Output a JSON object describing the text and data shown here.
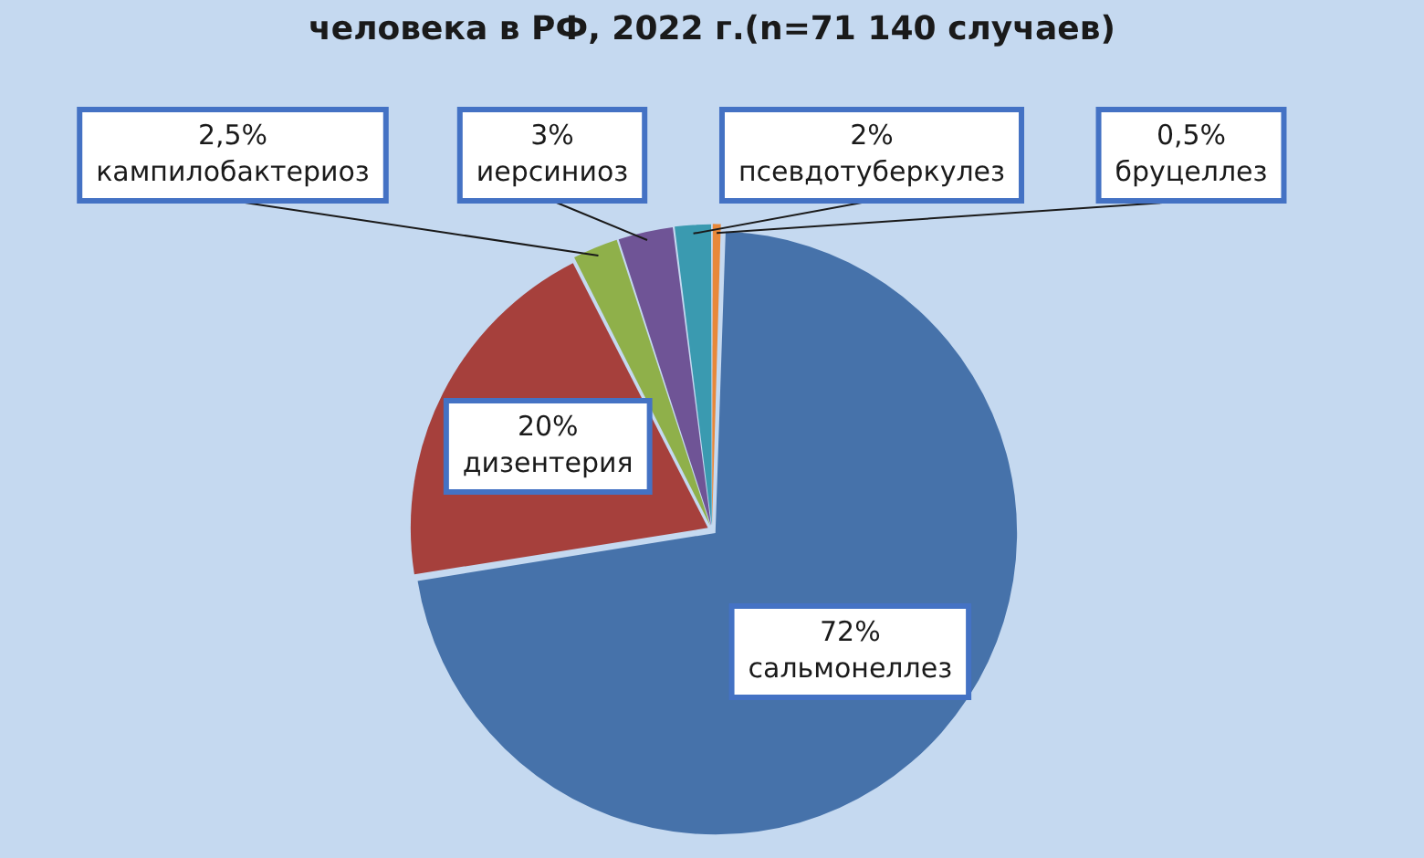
{
  "chart_data": {
    "type": "pie",
    "title": "человека в РФ, 2022 г.(n=71 140 случаев)",
    "categories": [
      "бруцеллез",
      "сальмонеллез",
      "дизентерия",
      "кампилобактериоз",
      "иерсиниоз",
      "псевдотуберкулез"
    ],
    "values": [
      0.5,
      72,
      20,
      2.5,
      3,
      2
    ],
    "colors": [
      "#e8883a",
      "#4672aa",
      "#a6403c",
      "#8fb04a",
      "#6f5496",
      "#3a9ab0"
    ],
    "value_labels": [
      "0,5%",
      "72%",
      "20%",
      "2,5%",
      "3%",
      "2%"
    ]
  }
}
